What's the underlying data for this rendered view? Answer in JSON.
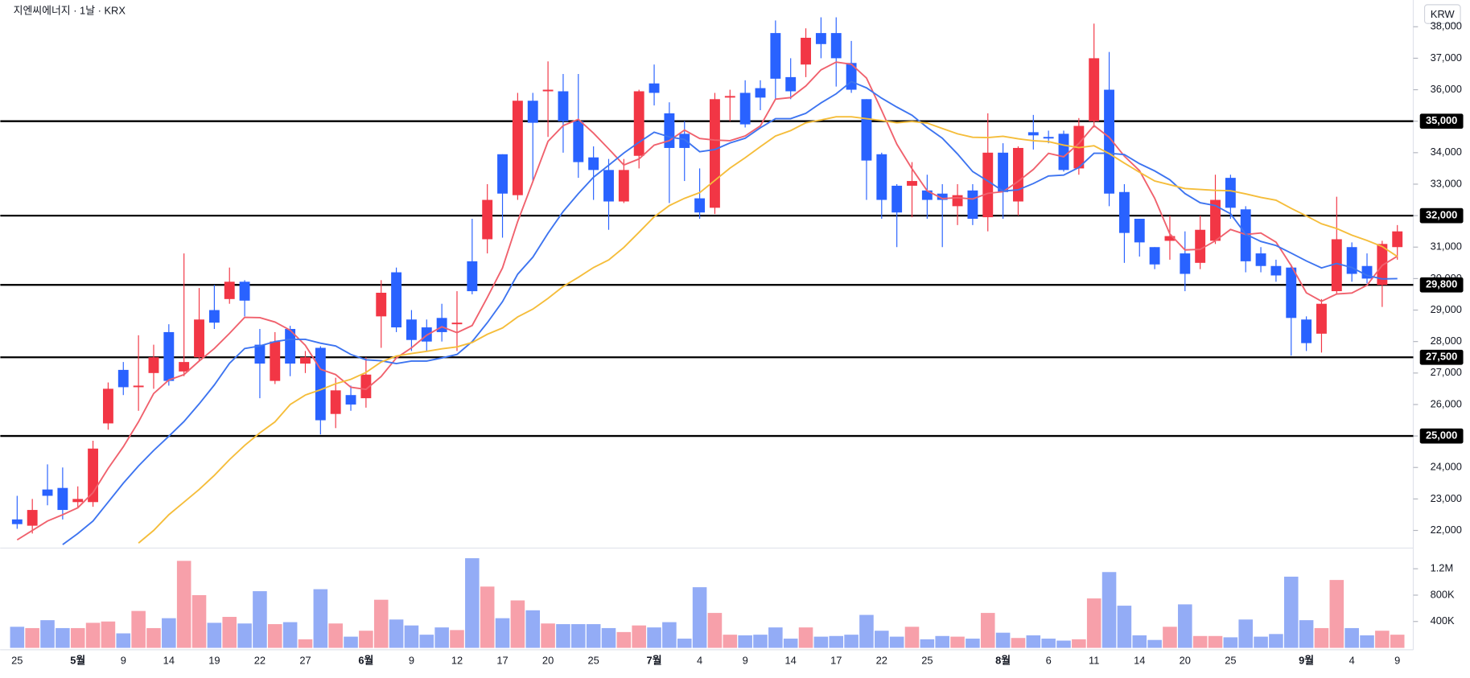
{
  "chart_data": {
    "type": "candlestick",
    "title": "지엔씨에너지 · 1날 · KRX",
    "currency": "KRW",
    "up_color": "#f23645",
    "down_color": "#2962ff",
    "categories": [
      "25",
      null,
      null,
      null,
      "5월",
      null,
      null,
      "9",
      null,
      null,
      "14",
      null,
      null,
      "19",
      null,
      null,
      "22",
      null,
      null,
      "27",
      null,
      null,
      null,
      "6월",
      null,
      null,
      "9",
      null,
      null,
      "12",
      null,
      null,
      "17",
      null,
      null,
      "20",
      null,
      null,
      "25",
      null,
      null,
      null,
      "7월",
      null,
      null,
      "4",
      null,
      null,
      "9",
      null,
      null,
      "14",
      null,
      null,
      "17",
      null,
      null,
      "22",
      null,
      null,
      "25",
      null,
      null,
      null,
      null,
      "8월",
      null,
      null,
      "6",
      null,
      null,
      "11",
      null,
      null,
      "14",
      null,
      null,
      "20",
      null,
      null,
      "25",
      null,
      null,
      null,
      null,
      "9월",
      null,
      null,
      "4",
      null,
      null,
      "9"
    ],
    "open": [
      22350,
      22150,
      23300,
      23350,
      22900,
      22900,
      25400,
      27100,
      26550,
      27000,
      28300,
      27050,
      27500,
      29000,
      29350,
      29900,
      27900,
      26750,
      28400,
      27300,
      27800,
      25700,
      26300,
      26200,
      28800,
      30200,
      28700,
      28450,
      28750,
      28550,
      30550,
      31250,
      33950,
      32650,
      35650,
      35950,
      35950,
      35000,
      33850,
      33450,
      32450,
      33900,
      36200,
      35250,
      34600,
      32550,
      32250,
      35750,
      35900,
      36050,
      37800,
      36400,
      36800,
      37800,
      37800,
      36850,
      35700,
      33950,
      32950,
      32950,
      32800,
      32700,
      32300,
      32800,
      31950,
      34000,
      32450,
      34650,
      34500,
      34600,
      33500,
      35000,
      36000,
      32750,
      31900,
      31000,
      31200,
      30800,
      30500,
      31200,
      33200,
      32200,
      30800,
      30400,
      30350,
      28700,
      28250,
      29600,
      31000,
      30400,
      29800,
      31000
    ],
    "high": [
      23100,
      23000,
      24100,
      24000,
      23400,
      24850,
      26700,
      27350,
      28200,
      27900,
      28550,
      30800,
      29700,
      29800,
      30350,
      29950,
      28400,
      28300,
      28500,
      27700,
      27850,
      26850,
      26600,
      27500,
      29950,
      30350,
      29000,
      28700,
      29200,
      29600,
      31900,
      33000,
      33950,
      35900,
      35900,
      36900,
      36500,
      36500,
      34200,
      33800,
      33800,
      36000,
      36800,
      35600,
      35000,
      33500,
      35900,
      36000,
      36300,
      36300,
      38200,
      37000,
      37950,
      38300,
      38300,
      37550,
      35700,
      34000,
      33000,
      33700,
      33300,
      33000,
      33000,
      33000,
      35250,
      34300,
      34200,
      35200,
      34700,
      34700,
      35100,
      38100,
      37200,
      33000,
      31900,
      31000,
      32000,
      31500,
      32000,
      33300,
      33300,
      32300,
      31000,
      30600,
      30450,
      28800,
      29350,
      32600,
      31150,
      30800,
      31200,
      31700
    ],
    "low": [
      22050,
      21900,
      22800,
      22350,
      22700,
      22750,
      25200,
      26300,
      25800,
      26500,
      26600,
      26900,
      27400,
      28400,
      29200,
      28800,
      26200,
      26650,
      26900,
      27000,
      25050,
      25250,
      25800,
      25900,
      27800,
      28300,
      27700,
      27700,
      28000,
      27700,
      29500,
      30800,
      31300,
      32500,
      33100,
      34500,
      34000,
      33200,
      32500,
      31550,
      32400,
      33500,
      35500,
      32400,
      33100,
      31900,
      32050,
      35000,
      34800,
      35350,
      35700,
      35700,
      36400,
      37000,
      36100,
      35900,
      32500,
      31900,
      31000,
      31950,
      31900,
      31000,
      31700,
      31700,
      31500,
      31900,
      32000,
      34100,
      34300,
      33400,
      33300,
      34800,
      32300,
      30500,
      30700,
      30300,
      30600,
      29600,
      30300,
      31100,
      31900,
      30200,
      30200,
      29900,
      27550,
      27700,
      27650,
      29500,
      29900,
      29850,
      29100,
      30600
    ],
    "close": [
      22200,
      22650,
      23100,
      22650,
      23000,
      24600,
      26500,
      26550,
      26600,
      27500,
      26750,
      27350,
      28700,
      28600,
      29900,
      29300,
      27300,
      28000,
      27300,
      27500,
      25500,
      26450,
      26000,
      26950,
      29550,
      28450,
      28050,
      28000,
      28300,
      28600,
      29600,
      32500,
      32700,
      35650,
      34950,
      36000,
      35000,
      33700,
      33450,
      32450,
      33450,
      35950,
      35900,
      34150,
      34150,
      32100,
      35700,
      35800,
      34900,
      35750,
      36350,
      35950,
      37650,
      37450,
      37000,
      36000,
      33750,
      32500,
      32100,
      33100,
      32500,
      32500,
      32650,
      31900,
      34000,
      32750,
      34150,
      34550,
      34450,
      33450,
      34850,
      37000,
      32700,
      31450,
      31150,
      30450,
      31350,
      30150,
      31550,
      32500,
      32250,
      30550,
      30400,
      30100,
      28750,
      27950,
      29200,
      31250,
      30150,
      30000,
      31100,
      31500
    ],
    "ylim": [
      21500,
      38850
    ],
    "yticks": [
      {
        "value": 22000,
        "label": "22,000"
      },
      {
        "value": 23000,
        "label": "23,000"
      },
      {
        "value": 24000,
        "label": "24,000"
      },
      {
        "value": 25000,
        "label": "25,000"
      },
      {
        "value": 26000,
        "label": "26,000"
      },
      {
        "value": 27000,
        "label": "27,000"
      },
      {
        "value": 28000,
        "label": "28,000"
      },
      {
        "value": 29000,
        "label": "29,000"
      },
      {
        "value": 30000,
        "label": "30,000"
      },
      {
        "value": 31000,
        "label": "31,000"
      },
      {
        "value": 32000,
        "label": "32,000"
      },
      {
        "value": 33000,
        "label": "33,000"
      },
      {
        "value": 34000,
        "label": "34,000"
      },
      {
        "value": 35000,
        "label": "35,000"
      },
      {
        "value": 36000,
        "label": "36,000"
      },
      {
        "value": 37000,
        "label": "37,000"
      },
      {
        "value": 38000,
        "label": "38,000"
      }
    ],
    "levels": [
      {
        "value": 35000,
        "label": "35,000"
      },
      {
        "value": 32000,
        "label": "32,000"
      },
      {
        "value": 29800,
        "label": "29,800"
      },
      {
        "value": 27500,
        "label": "27,500"
      },
      {
        "value": 25000,
        "label": "25,000"
      }
    ],
    "series": [
      {
        "color": "#f0616d",
        "values": [
          21700,
          22000,
          22300,
          22500,
          22720,
          23200,
          23970,
          24660,
          25450,
          26350,
          26780,
          26950,
          27380,
          27780,
          28260,
          28770,
          28760,
          28620,
          28360,
          27880,
          27120,
          26950,
          26550,
          26480,
          26890,
          27480,
          27800,
          28200,
          28470,
          28280,
          28510,
          29400,
          30340,
          31810,
          33080,
          34360,
          34860,
          35060,
          34620,
          34120,
          33610,
          33800,
          34240,
          34380,
          34720,
          34450,
          34400,
          34380,
          34530,
          34850,
          35700,
          35750,
          36120,
          36630,
          36880,
          36810,
          36370,
          35340,
          34270,
          33490,
          32790,
          32540,
          32570,
          32530,
          32710,
          32760,
          33090,
          33470,
          33980,
          33870,
          34290,
          34860,
          34490,
          33890,
          33430,
          32550,
          31420,
          30910,
          30930,
          31200,
          31560,
          31400,
          31450,
          31160,
          30410,
          29550,
          29280,
          29510,
          29540,
          29790,
          30420,
          30710
        ]
      },
      {
        "color": "#3d74f0",
        "values": [
          null,
          null,
          null,
          21550,
          21900,
          22300,
          22900,
          23500,
          24050,
          24540,
          24990,
          25460,
          26020,
          26620,
          27310,
          27780,
          27860,
          28000,
          28070,
          28070,
          27950,
          27860,
          27590,
          27420,
          27390,
          27300,
          27380,
          27380,
          27480,
          27590,
          28000,
          28600,
          29270,
          30140,
          30680,
          31440,
          32130,
          32700,
          33220,
          33600,
          33990,
          34330,
          34650,
          34500,
          34420,
          34030,
          34100,
          34310,
          34460,
          34790,
          35080,
          35080,
          35250,
          35580,
          35870,
          36260,
          36060,
          35730,
          35450,
          35190,
          34800,
          34460,
          33960,
          33400,
          33100,
          32780,
          32820,
          33020,
          33260,
          33290,
          33530,
          33980,
          33980,
          33940,
          33650,
          33420,
          33140,
          32700,
          32410,
          32320,
          32060,
          31410,
          31180,
          31050,
          30810,
          30560,
          30340,
          30480,
          30350,
          30100,
          29990,
          30000
        ]
      },
      {
        "color": "#f5bd3a",
        "values": [
          null,
          null,
          null,
          null,
          null,
          null,
          null,
          null,
          21600,
          22000,
          22500,
          22900,
          23300,
          23750,
          24250,
          24700,
          25100,
          25450,
          26000,
          26300,
          26470,
          26660,
          26800,
          27020,
          27350,
          27540,
          27620,
          27690,
          27770,
          27830,
          27970,
          28230,
          28430,
          28780,
          29030,
          29370,
          29750,
          30040,
          30350,
          30590,
          30990,
          31470,
          31960,
          32320,
          32550,
          32730,
          33120,
          33510,
          33840,
          34190,
          34530,
          34700,
          34950,
          35040,
          35140,
          35140,
          35080,
          35020,
          34950,
          34990,
          34940,
          34770,
          34600,
          34490,
          34480,
          34520,
          34440,
          34380,
          34350,
          34240,
          34160,
          34220,
          33970,
          33670,
          33380,
          33100,
          32980,
          32860,
          32830,
          32800,
          32790,
          32690,
          32580,
          32490,
          32230,
          31990,
          31740,
          31590,
          31380,
          31210,
          31020,
          30700
        ]
      }
    ],
    "volume": {
      "up_color": "#f7a0aa",
      "down_color": "#93acf6",
      "values": [
        320000,
        300000,
        420000,
        300000,
        300000,
        380000,
        400000,
        220000,
        560000,
        300000,
        450000,
        1320000,
        800000,
        380000,
        470000,
        370000,
        860000,
        360000,
        390000,
        130000,
        890000,
        370000,
        170000,
        260000,
        730000,
        430000,
        340000,
        200000,
        310000,
        270000,
        1360000,
        930000,
        450000,
        720000,
        570000,
        370000,
        360000,
        360000,
        360000,
        300000,
        240000,
        340000,
        310000,
        390000,
        140000,
        920000,
        530000,
        200000,
        190000,
        200000,
        310000,
        140000,
        310000,
        170000,
        180000,
        200000,
        500000,
        260000,
        170000,
        320000,
        130000,
        180000,
        170000,
        140000,
        530000,
        230000,
        150000,
        190000,
        140000,
        110000,
        130000,
        750000,
        1150000,
        640000,
        190000,
        120000,
        320000,
        660000,
        180000,
        180000,
        160000,
        430000,
        170000,
        210000,
        1080000,
        420000,
        300000,
        1030000,
        300000,
        190000,
        260000,
        200000
      ],
      "ylim": [
        0,
        1400000
      ],
      "yticks": [
        {
          "value": 400000,
          "label": "400K"
        },
        {
          "value": 800000,
          "label": "800K"
        },
        {
          "value": 1200000,
          "label": "1.2M"
        }
      ]
    }
  }
}
